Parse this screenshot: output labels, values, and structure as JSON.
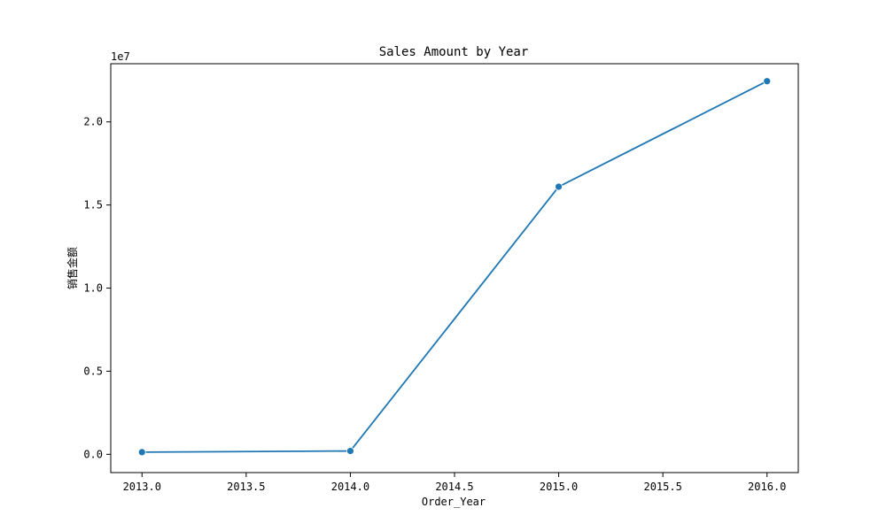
{
  "chart_data": {
    "type": "line",
    "title": "Sales Amount by Year",
    "xlabel": "Order_Year",
    "ylabel": "销售金额",
    "y_offset_label": "1e7",
    "x": [
      2013,
      2014,
      2015,
      2016
    ],
    "series": [
      {
        "values": [
          130000,
          200000,
          16100000,
          22450000
        ]
      }
    ],
    "xlim": [
      2012.85,
      2016.15
    ],
    "ylim": [
      -1100000,
      23500000
    ],
    "x_ticks": [
      2013.0,
      2013.5,
      2014.0,
      2014.5,
      2015.0,
      2015.5,
      2016.0
    ],
    "x_tick_labels": [
      "2013.0",
      "2013.5",
      "2014.0",
      "2014.5",
      "2015.0",
      "2015.5",
      "2016.0"
    ],
    "y_ticks": [
      0,
      5000000,
      10000000,
      15000000,
      20000000
    ],
    "y_tick_labels": [
      "0.0",
      "0.5",
      "1.0",
      "1.5",
      "2.0"
    ],
    "grid": false,
    "line_color": "#1f77b4",
    "marker": "circle"
  }
}
